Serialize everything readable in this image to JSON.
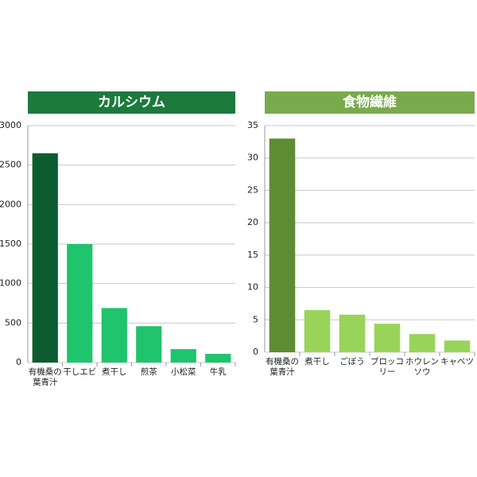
{
  "chart_data": [
    {
      "type": "bar",
      "title": "カルシウム",
      "title_color": "#1b7a3c",
      "categories": [
        "有機桑の葉青汁",
        "干しエビ",
        "煮干し",
        "煎茶",
        "小松菜",
        "牛乳"
      ],
      "values": [
        2650,
        1500,
        690,
        460,
        170,
        110
      ],
      "colors": [
        "#0d5c2f",
        "#1fc46c",
        "#1fc46c",
        "#1fc46c",
        "#1fc46c",
        "#1fc46c"
      ],
      "ylim": [
        0,
        3000
      ],
      "yticks": [
        0,
        500,
        1000,
        1500,
        2000,
        2500,
        3000
      ],
      "grid": true
    },
    {
      "type": "bar",
      "title": "食物繊維",
      "title_color": "#79ab4d",
      "categories": [
        "有機桑の葉青汁",
        "煮干し",
        "ごぼう",
        "ブロッコリー",
        "ホウレンソウ",
        "キャベツ"
      ],
      "values": [
        33,
        6.5,
        5.8,
        4.4,
        2.8,
        1.8
      ],
      "colors": [
        "#5e8c35",
        "#98d45a",
        "#98d45a",
        "#98d45a",
        "#98d45a",
        "#98d45a"
      ],
      "ylim": [
        0,
        35
      ],
      "yticks": [
        0,
        5,
        10,
        15,
        20,
        25,
        30,
        35
      ],
      "grid": true
    }
  ]
}
